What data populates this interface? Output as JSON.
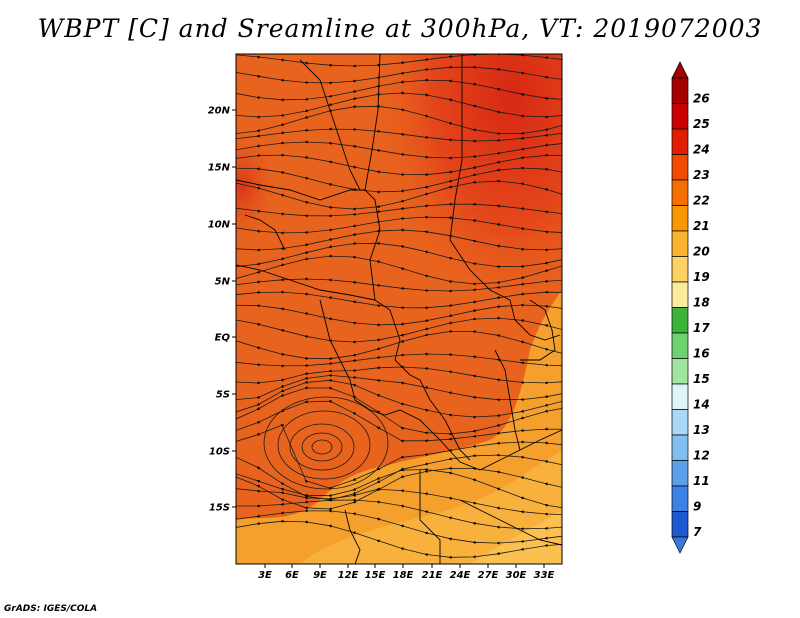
{
  "title": "WBPT [C] and Sreamline at 300hPa, VT: 2019072003",
  "footer": "GrADS: IGES/COLA",
  "map": {
    "lon_labels": [
      "3E",
      "6E",
      "9E",
      "12E",
      "15E",
      "18E",
      "21E",
      "24E",
      "27E",
      "30E",
      "33E"
    ],
    "lat_labels": [
      "20N",
      "15N",
      "10N",
      "5N",
      "EQ",
      "5S",
      "10S",
      "15S"
    ]
  },
  "colorbar": {
    "labels": [
      "26",
      "25",
      "24",
      "23",
      "22",
      "21",
      "20",
      "19",
      "18",
      "17",
      "16",
      "15",
      "14",
      "13",
      "12",
      "11",
      "9",
      "7"
    ],
    "colors": [
      "#a50000",
      "#c80000",
      "#e11e00",
      "#f04b00",
      "#f56e00",
      "#f99600",
      "#fab432",
      "#fcd264",
      "#fceb9b",
      "#3cb43c",
      "#6ed26e",
      "#a0e6a0",
      "#dcf5f5",
      "#aad7f5",
      "#82bef0",
      "#5aa0eb",
      "#3c82e6",
      "#1e5ad2"
    ]
  },
  "colors": {
    "field_main": "#e8641e",
    "field_hot": "#dc3c14",
    "field_warm": "#f5a02d",
    "boundary": "#000000"
  }
}
